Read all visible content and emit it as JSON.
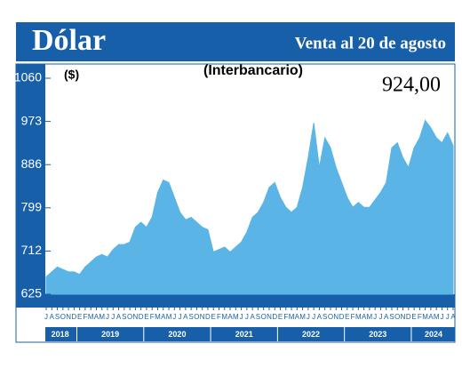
{
  "chart_data": {
    "type": "area",
    "title": "Dólar",
    "subtitle": "Venta al 20 de agosto",
    "chart_title": "(Interbancario)",
    "y_label": "($)",
    "annotation": "924,00",
    "color": "#5ab4e5",
    "categories": [
      "J",
      "A",
      "S",
      "O",
      "N",
      "D",
      "E",
      "F",
      "M",
      "A",
      "M",
      "J",
      "J",
      "A",
      "S",
      "O",
      "N",
      "D",
      "E",
      "F",
      "M",
      "A",
      "M",
      "J",
      "J",
      "A",
      "S",
      "O",
      "N",
      "D",
      "E",
      "F",
      "M",
      "A",
      "M",
      "J",
      "J",
      "A",
      "S",
      "O",
      "N",
      "D",
      "E",
      "F",
      "M",
      "A",
      "M",
      "J",
      "J",
      "A",
      "S",
      "O",
      "N",
      "D",
      "E",
      "F",
      "M",
      "A",
      "M",
      "J",
      "J",
      "A",
      "S",
      "O",
      "N",
      "D",
      "E",
      "F",
      "M",
      "A",
      "M",
      "J",
      "J",
      "A"
    ],
    "years": [
      "2018",
      "2019",
      "2020",
      "2021",
      "2022",
      "2023",
      "2024"
    ],
    "values": [
      660,
      670,
      680,
      675,
      670,
      670,
      665,
      680,
      690,
      700,
      705,
      700,
      715,
      725,
      725,
      730,
      760,
      770,
      760,
      780,
      830,
      855,
      850,
      820,
      790,
      775,
      780,
      770,
      760,
      755,
      710,
      715,
      720,
      710,
      720,
      730,
      750,
      780,
      790,
      810,
      840,
      850,
      820,
      800,
      790,
      800,
      840,
      900,
      970,
      880,
      940,
      920,
      880,
      850,
      820,
      800,
      810,
      800,
      800,
      815,
      830,
      850,
      920,
      930,
      900,
      880,
      920,
      940,
      975,
      960,
      940,
      930,
      950,
      924
    ],
    "ylim": [
      625,
      1060
    ],
    "yticks": [
      625,
      712,
      799,
      886,
      973,
      1060
    ]
  }
}
